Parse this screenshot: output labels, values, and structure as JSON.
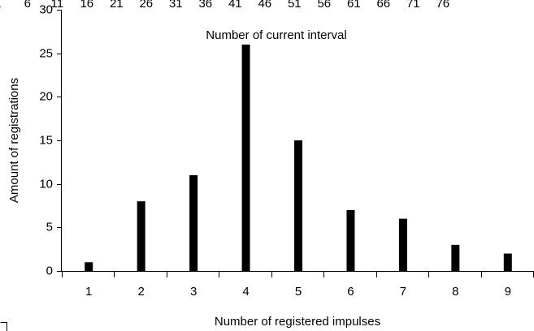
{
  "chart_data": {
    "type": "bar",
    "title": "Number of current interval",
    "x_label": "Number of registered impulses",
    "y_label": "Amount of registrations",
    "categories": [
      "1",
      "2",
      "3",
      "4",
      "5",
      "6",
      "7",
      "8",
      "9"
    ],
    "values": [
      1,
      8,
      11,
      26,
      15,
      7,
      6,
      3,
      2
    ],
    "color": "#000000",
    "ylim": [
      0,
      30
    ],
    "yticks": [
      0,
      5,
      10,
      15,
      20,
      25,
      30
    ],
    "x2lim": [
      0,
      90
    ],
    "x2ticks": [
      1,
      6,
      11,
      16,
      21,
      26,
      31,
      36,
      41,
      46,
      51,
      56,
      61,
      66,
      71,
      76
    ],
    "grid": false
  }
}
